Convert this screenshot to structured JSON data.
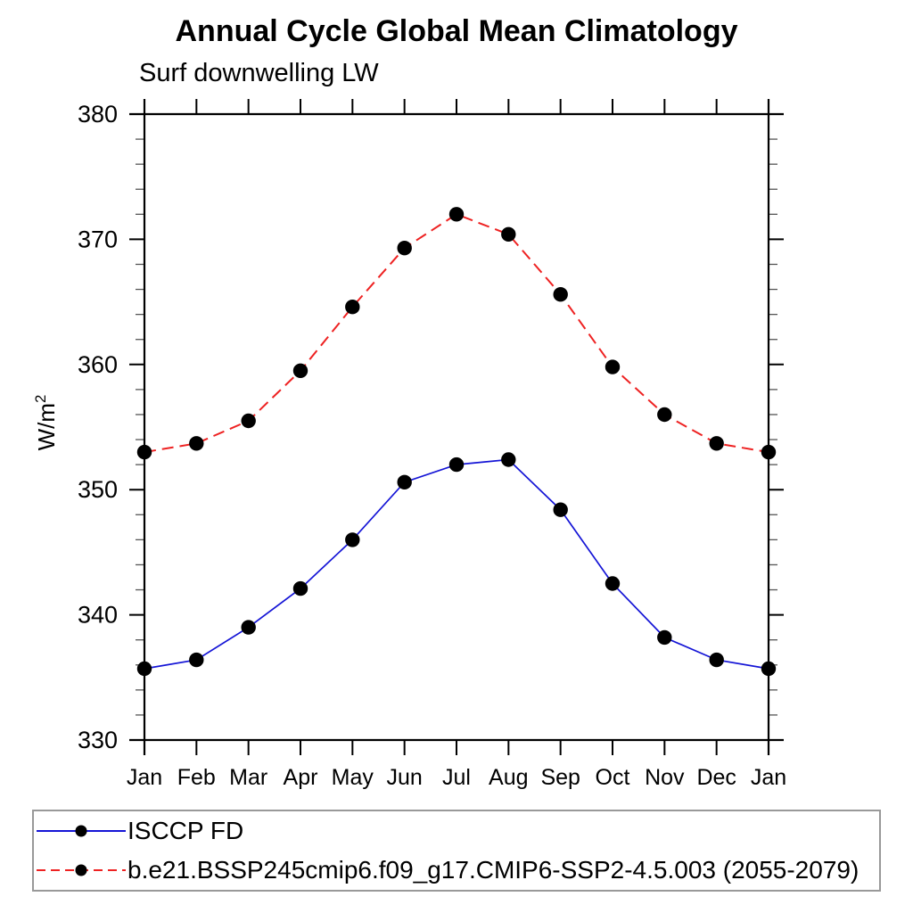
{
  "title": "Annual Cycle Global Mean Climatology",
  "subtitle": "Surf downwelling LW",
  "y_axis": {
    "label_base": "W/m",
    "label_sup": "2"
  },
  "chart_data": {
    "type": "line",
    "title": "Annual Cycle Global Mean Climatology",
    "subtitle": "Surf downwelling LW",
    "ylabel": "W/m2",
    "xlabel": "",
    "categories": [
      "Jan",
      "Feb",
      "Mar",
      "Apr",
      "May",
      "Jun",
      "Jul",
      "Aug",
      "Sep",
      "Oct",
      "Nov",
      "Dec",
      "Jan"
    ],
    "ylim": [
      330,
      380
    ],
    "yticks": [
      330,
      340,
      350,
      360,
      370,
      380
    ],
    "ytick_minor_step": 2,
    "grid": false,
    "legend_position": "bottom-left-box",
    "series": [
      {
        "name": "ISCCP FD",
        "color": "#1414d6",
        "line_style": "solid",
        "marker": "filled-circle",
        "marker_color": "#000000",
        "values": [
          335.7,
          336.4,
          339.0,
          342.1,
          346.0,
          350.6,
          352.0,
          352.4,
          348.4,
          342.5,
          338.2,
          336.4,
          335.7
        ]
      },
      {
        "name": "b.e21.BSSP245cmip6.f09_g17.CMIP6-SSP2-4.5.003 (2055-2079)",
        "color": "#ee2222",
        "line_style": "dashed",
        "marker": "filled-circle",
        "marker_color": "#000000",
        "values": [
          353.0,
          353.7,
          355.5,
          359.5,
          364.6,
          369.3,
          372.0,
          370.4,
          365.6,
          359.8,
          356.0,
          353.7,
          353.0
        ]
      }
    ],
    "axis_color": "#000000",
    "minor_tick_color": "#555555"
  }
}
